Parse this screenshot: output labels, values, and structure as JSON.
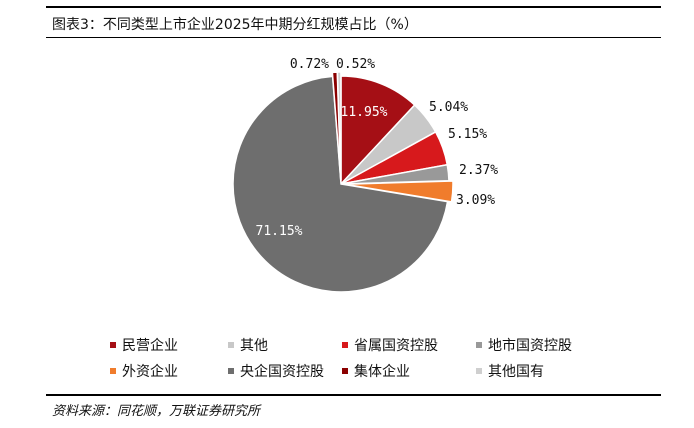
{
  "figure": {
    "title": "图表3：不同类型上市企业2025年中期分红规模占比（%）",
    "source": "资料来源：同花顺，万联证券研究所"
  },
  "chart_data": {
    "type": "pie",
    "start_angle_deg": 90,
    "direction": "clockwise",
    "slices": [
      {
        "name": "民营企业",
        "value": 11.95,
        "label": "11.95%",
        "color": "#A50F15",
        "label_pos": "inside"
      },
      {
        "name": "其他",
        "value": 5.04,
        "label": "5.04%",
        "color": "#C8C8C8",
        "label_pos": "outside"
      },
      {
        "name": "省属国资控股",
        "value": 5.15,
        "label": "5.15%",
        "color": "#D7191C",
        "label_pos": "outside"
      },
      {
        "name": "地市国资控股",
        "value": 2.37,
        "label": "2.37%",
        "color": "#999999",
        "label_pos": "outside"
      },
      {
        "name": "外资企业",
        "value": 3.09,
        "label": "3.09%",
        "color": "#F07C2C",
        "label_pos": "outside"
      },
      {
        "name": "央企国资控股",
        "value": 71.15,
        "label": "71.15%",
        "color": "#6E6E6E",
        "label_pos": "inside"
      },
      {
        "name": "集体企业",
        "value": 0.72,
        "label": "0.72%",
        "color": "#8B0000",
        "label_pos": "outside"
      },
      {
        "name": "其他国有",
        "value": 0.52,
        "label": "0.52%",
        "color": "#CFCFCF",
        "label_pos": "outside"
      }
    ],
    "legend": {
      "placement": "bottom",
      "order": [
        "民营企业",
        "其他",
        "省属国资控股",
        "地市国资控股",
        "外资企业",
        "央企国资控股",
        "集体企业",
        "其他国有"
      ]
    }
  }
}
